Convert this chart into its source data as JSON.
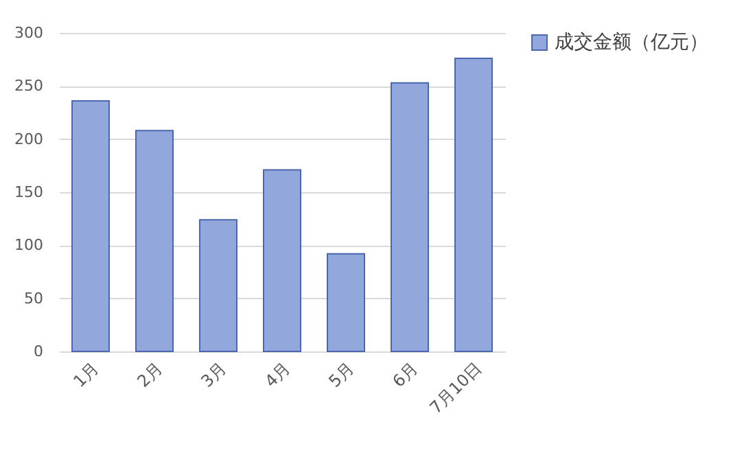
{
  "chart_data": {
    "type": "bar",
    "categories": [
      "1月",
      "2月",
      "3月",
      "4月",
      "5月",
      "6月",
      "7月10日"
    ],
    "series": [
      {
        "name": "成交金额（亿元）",
        "color": "#92a8dc",
        "values": [
          236,
          208,
          124,
          171,
          92,
          253,
          276
        ]
      }
    ],
    "ylim": [
      0,
      300
    ],
    "yticks": [
      0,
      50,
      100,
      150,
      200,
      250,
      300
    ],
    "grid": "y",
    "legend": "right"
  }
}
